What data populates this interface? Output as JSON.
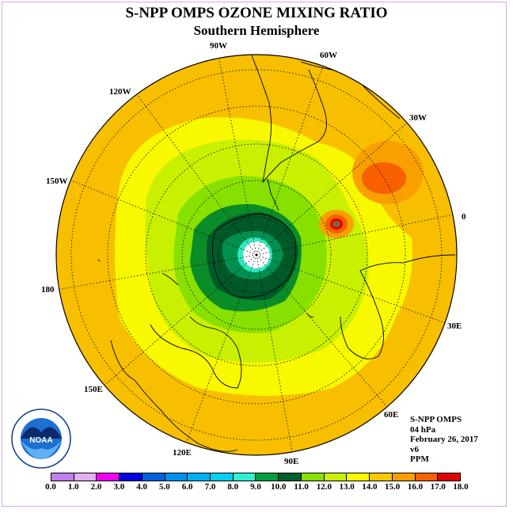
{
  "title": "S-NPP OMPS OZONE MIXING RATIO",
  "subtitle": "Southern Hemisphere",
  "lon_labels": [
    "90W",
    "60W",
    "30W",
    "0",
    "30E",
    "60E",
    "90E",
    "120E",
    "150E",
    "180",
    "150W",
    "120W"
  ],
  "logo_text": "NOAA",
  "info": {
    "instrument": "S-NPP OMPS",
    "pressure": "04 hPa",
    "date": "February 26, 2017",
    "version": "v6",
    "units": "PPM"
  },
  "colorbar": {
    "ticks": [
      "0.0",
      "1.0",
      "2.0",
      "3.0",
      "4.0",
      "5.0",
      "6.0",
      "7.0",
      "8.0",
      "9.0",
      "10.0",
      "11.0",
      "12.0",
      "13.0",
      "14.0",
      "15.0",
      "16.0",
      "17.0",
      "18.0"
    ],
    "colors": [
      "#c080f0",
      "#e0b0f0",
      "#f000f0",
      "#0000e0",
      "#0060e0",
      "#0090f0",
      "#00b0f0",
      "#00d0f0",
      "#30f0d0",
      "#00a040",
      "#006030",
      "#88e000",
      "#c8f000",
      "#f8f800",
      "#f8c800",
      "#f8a000",
      "#f86000",
      "#e00000",
      "#806040"
    ]
  }
}
